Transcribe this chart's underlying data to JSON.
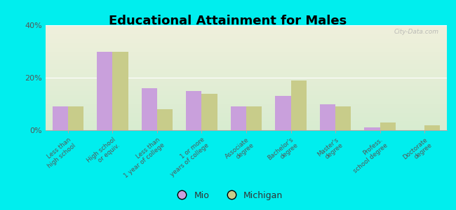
{
  "title": "Educational Attainment for Males",
  "categories": [
    "Less than\nhigh school",
    "High school\nor equiv.",
    "Less than\n1 year of college",
    "1 or more\nyears of college",
    "Associate\ndegree",
    "Bachelor's\ndegree",
    "Master's\ndegree",
    "Profess.\nschool degree",
    "Doctorate\ndegree"
  ],
  "mio_values": [
    9,
    30,
    16,
    15,
    9,
    13,
    10,
    1,
    0
  ],
  "michigan_values": [
    9,
    30,
    8,
    14,
    9,
    19,
    9,
    3,
    2
  ],
  "mio_color": "#c9a0dc",
  "michigan_color": "#c8cc8a",
  "background_color": "#00eeee",
  "plot_bg_top": "#d8ecd0",
  "plot_bg_bottom": "#f0f0dc",
  "ylim": [
    0,
    40
  ],
  "yticks": [
    0,
    20,
    40
  ],
  "ytick_labels": [
    "0%",
    "20%",
    "40%"
  ],
  "bar_width": 0.35,
  "legend_labels": [
    "Mio",
    "Michigan"
  ],
  "watermark": "City-Data.com"
}
